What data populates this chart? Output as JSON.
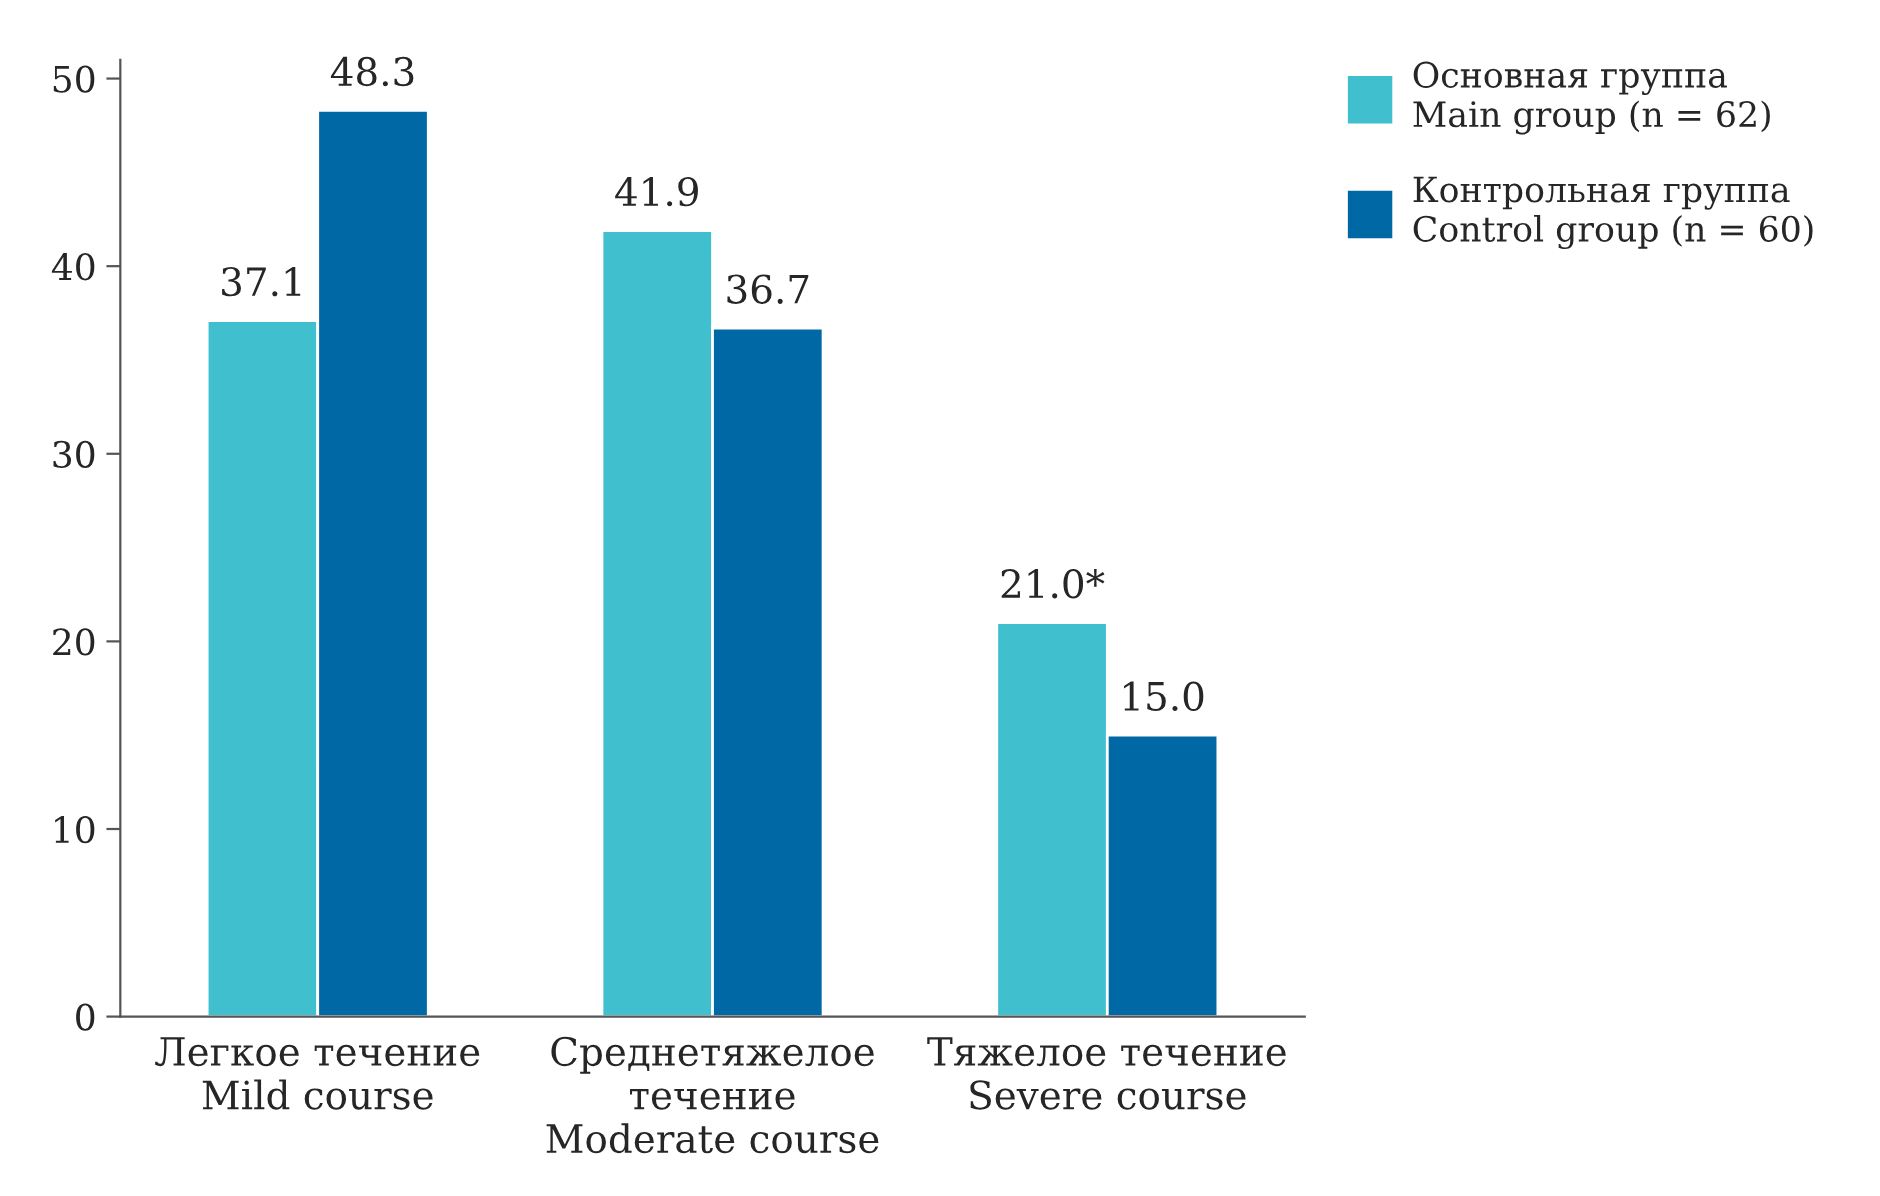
{
  "chart_data": {
    "type": "bar",
    "categories": [
      "Легкое течение\nMild course",
      "Среднетяжелое\nтечение\nModerate course",
      "Тяжелое течение\nSevere course"
    ],
    "series": [
      {
        "name": "Основная группа\nMain group (n = 62)",
        "color": "#40bfcf",
        "values": [
          37.1,
          41.9,
          21.0
        ],
        "value_labels": [
          "37.1",
          "41.9",
          "21.0*"
        ]
      },
      {
        "name": "Контрольная группа\nControl group (n = 60)",
        "color": "#0068a5",
        "values": [
          48.3,
          36.7,
          15.0
        ],
        "value_labels": [
          "48.3",
          "36.7",
          "15.0"
        ]
      }
    ],
    "ylim": [
      0,
      51
    ],
    "yticks": [
      0,
      10,
      20,
      30,
      40,
      50
    ],
    "grid": false,
    "legend": "top right"
  }
}
